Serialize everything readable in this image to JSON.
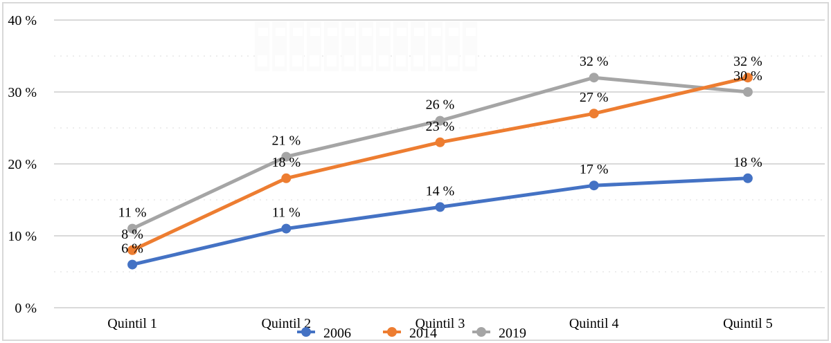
{
  "frame": {
    "background": "#ffffff",
    "border_color": "#d8d8d8"
  },
  "chart_data": {
    "type": "line",
    "categories": [
      "Quintil 1",
      "Quintil 2",
      "Quintil 3",
      "Quintil 4",
      "Quintil 5"
    ],
    "series": [
      {
        "name": "2006",
        "color": "#4472C4",
        "values": [
          6,
          11,
          14,
          17,
          18
        ],
        "labels": [
          "6 %",
          "11 %",
          "14 %",
          "17 %",
          "18 %"
        ]
      },
      {
        "name": "2014",
        "color": "#ED7D31",
        "values": [
          8,
          18,
          23,
          27,
          32
        ],
        "labels": [
          "8 %",
          "18 %",
          "23 %",
          "27 %",
          "32 %"
        ]
      },
      {
        "name": "2019",
        "color": "#A5A5A5",
        "values": [
          11,
          21,
          26,
          32,
          30
        ],
        "labels": [
          "11 %",
          "21 %",
          "26 %",
          "32 %",
          "30 %"
        ]
      }
    ],
    "y_axis": {
      "min": 0,
      "max": 40,
      "major_interval": 10,
      "minor_interval": 5,
      "tick_values": [
        0,
        10,
        20,
        30,
        40
      ],
      "tick_labels": [
        "0 %",
        "10 %",
        "20 %",
        "30 %",
        "40 %"
      ]
    },
    "x_axis": {
      "tick_labels": [
        "Quintil 1",
        "Quintil 2",
        "Quintil 3",
        "Quintil 4",
        "Quintil 5"
      ]
    },
    "legend": {
      "position": "bottom",
      "entries": [
        {
          "label": "2006",
          "color": "#4472C4"
        },
        {
          "label": "2014",
          "color": "#ED7D31"
        },
        {
          "label": "2019",
          "color": "#A5A5A5"
        }
      ]
    },
    "grid": {
      "major_color": "#d9d9d9",
      "minor_color": "#ededed",
      "text_color": "#000000"
    },
    "watermark": {
      "band_color": "#fbfbfb",
      "notch_color": "#ffffff"
    }
  }
}
